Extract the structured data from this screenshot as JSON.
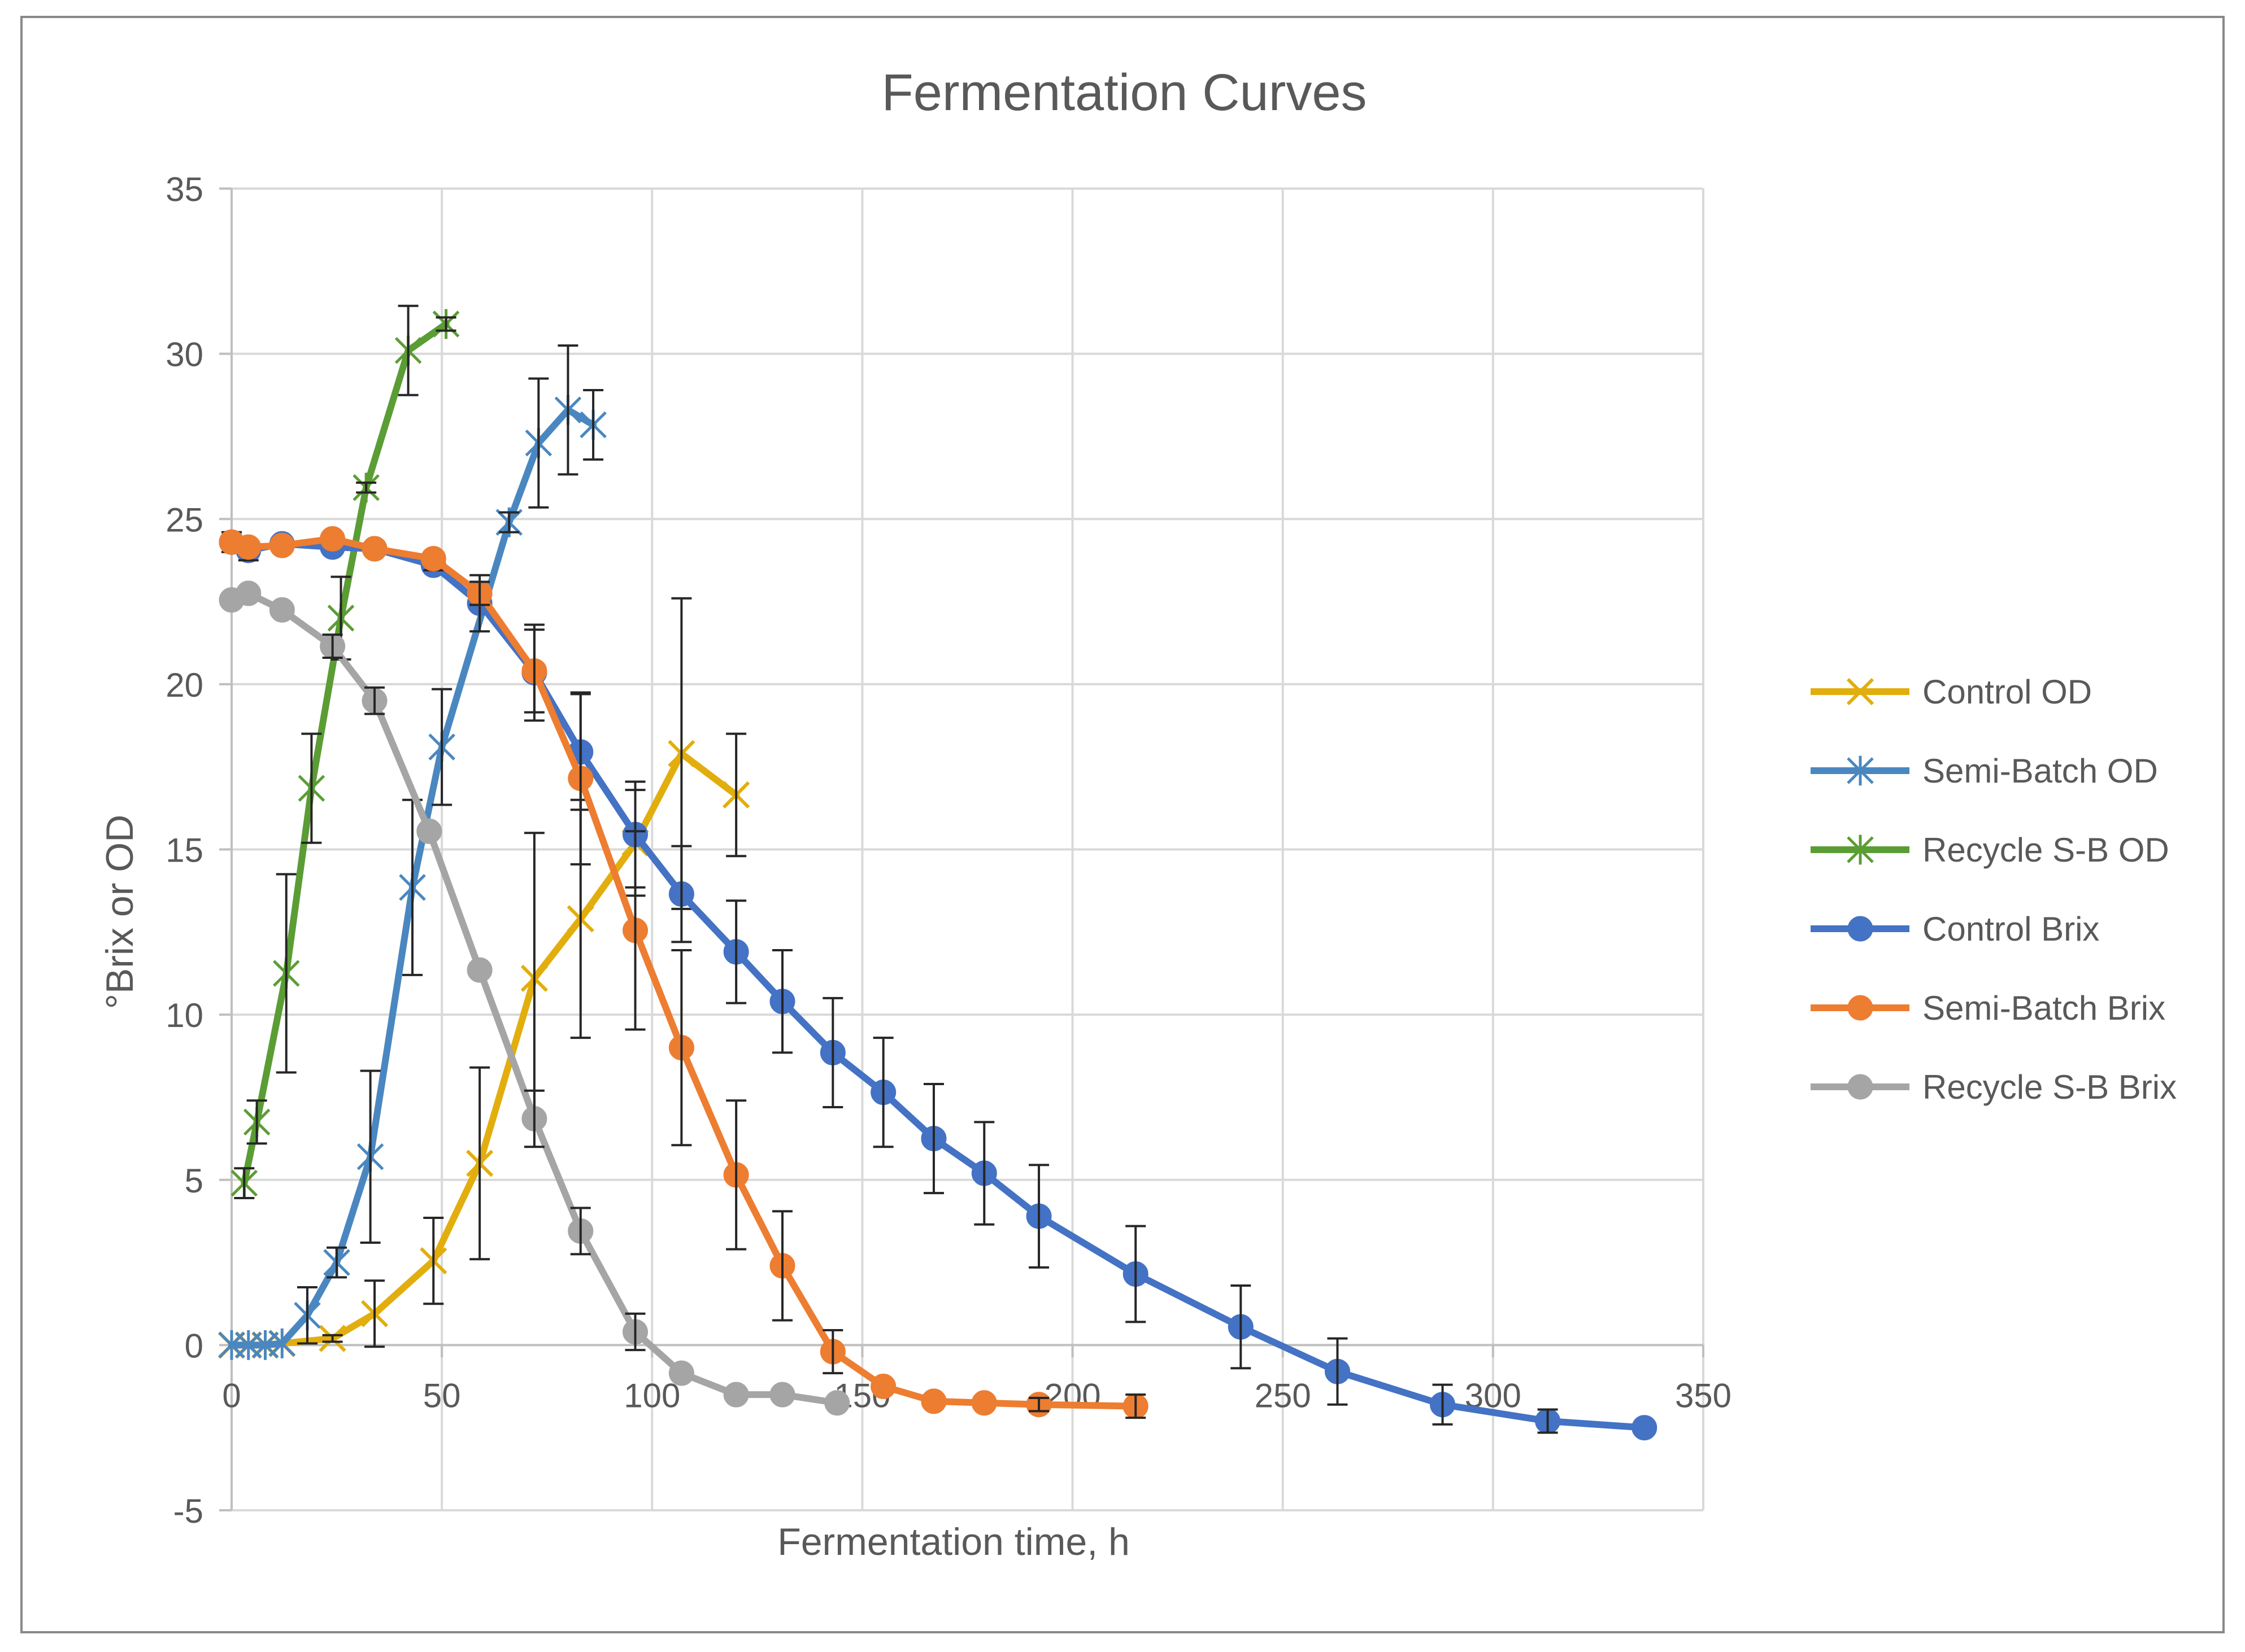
{
  "chart_data": {
    "type": "line",
    "title": "Fermentation Curves",
    "xlabel": "Fermentation time, h",
    "ylabel": "°Brix or OD",
    "xlim": [
      0,
      350
    ],
    "ylim": [
      -5,
      35
    ],
    "xticks": [
      0,
      50,
      100,
      150,
      200,
      250,
      300,
      350
    ],
    "yticks": [
      -5,
      0,
      5,
      10,
      15,
      20,
      25,
      30,
      35
    ],
    "grid": true,
    "legend_position": "right",
    "series": [
      {
        "name": "Control OD",
        "color": "#E2AE0E",
        "marker": "x",
        "x": [
          0,
          4,
          8,
          12,
          24,
          34,
          48,
          59,
          72,
          83,
          96,
          107,
          120
        ],
        "y": [
          0,
          0,
          0,
          0.05,
          0.2,
          0.95,
          2.55,
          5.5,
          11.1,
          12.9,
          15.2,
          17.9,
          16.65
        ],
        "err": [
          0,
          0,
          0,
          0,
          0.1,
          1.0,
          1.3,
          2.9,
          4.4,
          3.6,
          1.6,
          4.7,
          1.85
        ]
      },
      {
        "name": "Semi-Batch OD",
        "color": "#4A87C0",
        "marker": "star",
        "x": [
          0,
          4,
          8,
          12,
          18,
          25,
          33,
          43,
          50,
          66,
          73,
          80,
          86
        ],
        "y": [
          0,
          0,
          0,
          0.05,
          0.9,
          2.5,
          5.7,
          13.85,
          18.1,
          24.9,
          27.3,
          28.3,
          27.85
        ],
        "err": [
          0,
          0,
          0,
          0,
          0.85,
          0.45,
          2.6,
          2.65,
          1.75,
          0.3,
          1.95,
          1.95,
          1.05
        ]
      },
      {
        "name": "Recycle S-B OD",
        "color": "#5B9D35",
        "marker": "star",
        "x": [
          3,
          6,
          13,
          19,
          26,
          32,
          42,
          51
        ],
        "y": [
          4.9,
          6.75,
          11.25,
          16.85,
          22.0,
          25.95,
          30.1,
          30.9
        ],
        "err": [
          0.45,
          0.65,
          3.0,
          1.65,
          1.25,
          0.15,
          1.35,
          0.2
        ]
      },
      {
        "name": "Control Brix",
        "color": "#4472C4",
        "marker": "circle",
        "x": [
          0,
          4,
          12,
          24,
          34,
          48,
          59,
          72,
          83,
          96,
          107,
          120,
          131,
          143,
          155,
          167,
          179,
          192,
          215,
          240,
          263,
          288,
          313,
          336
        ],
        "y": [
          24.3,
          24.05,
          24.25,
          24.15,
          24.1,
          23.6,
          22.45,
          20.35,
          17.95,
          15.45,
          13.65,
          11.9,
          10.4,
          8.85,
          7.65,
          6.25,
          5.2,
          3.9,
          2.15,
          0.55,
          -0.8,
          -1.8,
          -2.3,
          -2.5
        ],
        "err": [
          0.3,
          0.3,
          0,
          0,
          0,
          0.15,
          0.85,
          1.45,
          1.75,
          1.6,
          1.45,
          1.55,
          1.55,
          1.65,
          1.65,
          1.65,
          1.55,
          1.55,
          1.45,
          1.25,
          1.0,
          0.6,
          0.35,
          0
        ]
      },
      {
        "name": "Semi-Batch Brix",
        "color": "#ED7D31",
        "marker": "circle",
        "x": [
          0,
          4,
          12,
          24,
          34,
          48,
          59,
          72,
          83,
          96,
          107,
          120,
          131,
          143,
          155,
          167,
          179,
          192,
          215
        ],
        "y": [
          24.3,
          24.15,
          24.2,
          24.4,
          24.1,
          23.8,
          22.75,
          20.4,
          17.15,
          12.55,
          9.0,
          5.15,
          2.4,
          -0.2,
          -1.25,
          -1.7,
          -1.75,
          -1.8,
          -1.85
        ],
        "err": [
          0,
          0,
          0,
          0,
          0,
          0,
          0.35,
          1.25,
          2.6,
          3.0,
          2.95,
          2.25,
          1.65,
          0.65,
          0,
          0,
          0,
          0.2,
          0.35
        ]
      },
      {
        "name": "Recycle S-B Brix",
        "color": "#A5A5A5",
        "marker": "circle",
        "x": [
          0,
          4,
          12,
          24,
          34,
          47,
          59,
          72,
          83,
          96,
          107,
          120,
          131,
          144
        ],
        "y": [
          22.55,
          22.75,
          22.25,
          21.15,
          19.5,
          15.55,
          11.35,
          6.85,
          3.45,
          0.4,
          -0.85,
          -1.5,
          -1.5,
          -1.75
        ],
        "err": [
          0,
          0,
          0,
          0.35,
          0.4,
          0,
          0,
          0.85,
          0.7,
          0.55,
          0,
          0,
          0,
          0
        ]
      }
    ]
  }
}
